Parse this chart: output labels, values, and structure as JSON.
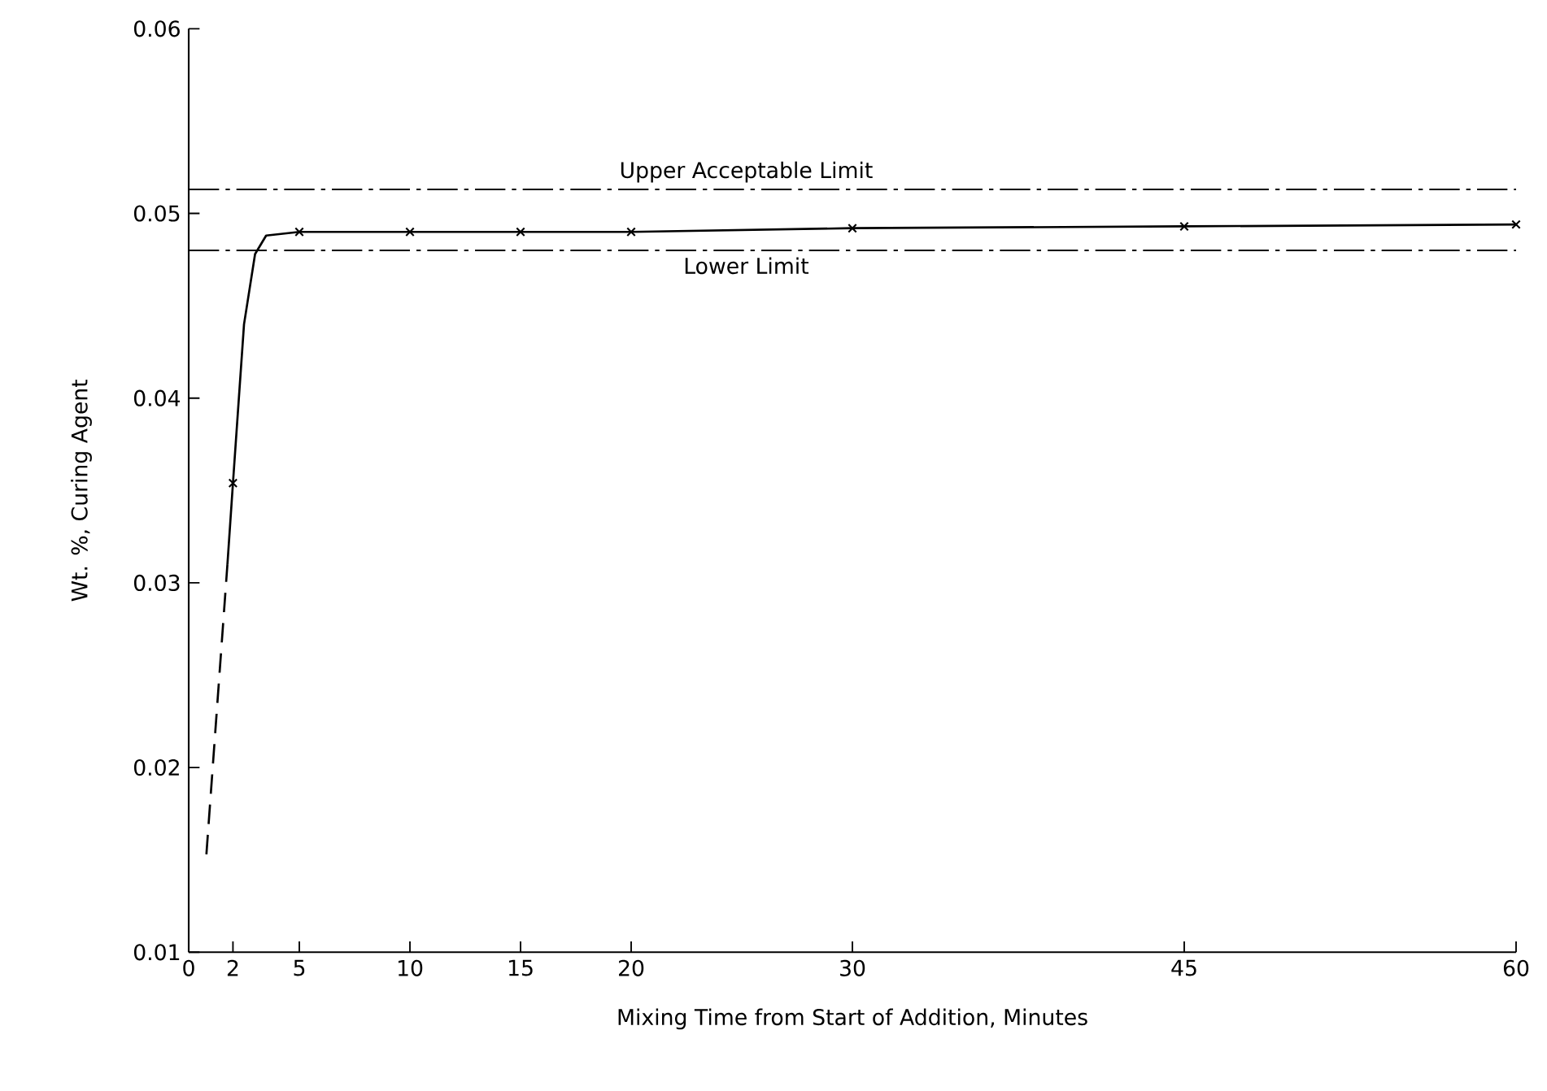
{
  "chart_data": {
    "type": "line",
    "xlabel": "Mixing Time from Start of Addition, Minutes",
    "ylabel": "Wt. %, Curing Agent",
    "xlim": [
      0,
      60
    ],
    "xticks": [
      0,
      2,
      5,
      10,
      15,
      20,
      30,
      45,
      60
    ],
    "ylim": [
      0.01,
      0.06
    ],
    "yticks": [
      0.01,
      0.02,
      0.03,
      0.04,
      0.05,
      0.06
    ],
    "grid": false,
    "series": [
      {
        "color": "#000000",
        "line_style": "dashed",
        "marker": "none",
        "x": [
          0.8,
          1.75
        ],
        "values": [
          0.0153,
          0.031
        ]
      },
      {
        "color": "#000000",
        "line_style": "solid",
        "marker": "none",
        "x": [
          1.75,
          2,
          2.5,
          3,
          3.5,
          5,
          10,
          15,
          20,
          30,
          45,
          60
        ],
        "values": [
          0.031,
          0.0354,
          0.044,
          0.0478,
          0.0488,
          0.049,
          0.049,
          0.049,
          0.049,
          0.0492,
          0.0493,
          0.0494
        ]
      },
      {
        "type": "scatter",
        "color": "#000000",
        "marker": "cross",
        "x": [
          2,
          5,
          10,
          15,
          20,
          30,
          45,
          60
        ],
        "values": [
          0.0354,
          0.049,
          0.049,
          0.049,
          0.049,
          0.0492,
          0.0493,
          0.0494
        ]
      }
    ],
    "ref_lines": [
      {
        "axis": "y",
        "value": 0.0513,
        "label": "Upper Acceptable Limit",
        "color": "#000000",
        "line_style": "dashdot"
      },
      {
        "axis": "y",
        "value": 0.048,
        "label": "Lower Limit",
        "color": "#000000",
        "line_style": "dashdot"
      }
    ]
  }
}
